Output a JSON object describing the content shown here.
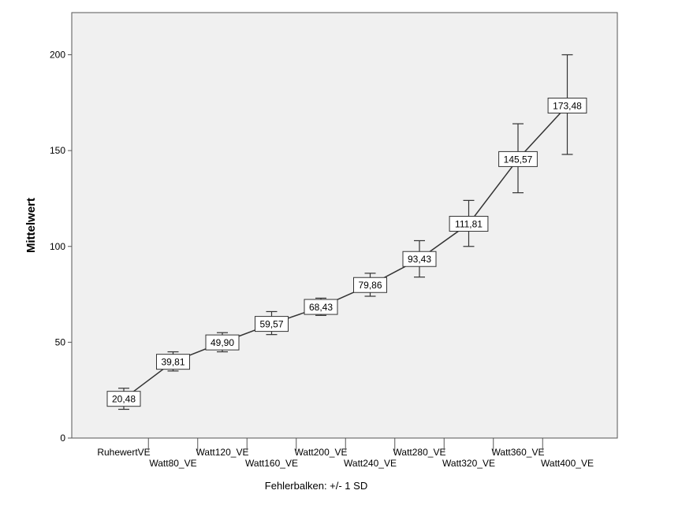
{
  "chart_data": {
    "type": "line",
    "categories": [
      "RuhewertVE",
      "Watt80_VE",
      "Watt120_VE",
      "Watt160_VE",
      "Watt200_VE",
      "Watt240_VE",
      "Watt280_VE",
      "Watt320_VE",
      "Watt360_VE",
      "Watt400_VE"
    ],
    "values": [
      20.48,
      39.81,
      49.9,
      59.57,
      68.43,
      79.86,
      93.43,
      111.81,
      145.57,
      173.48
    ],
    "data_labels": [
      "20,48",
      "39,81",
      "49,90",
      "59,57",
      "68,43",
      "79,86",
      "93,43",
      "111,81",
      "145,57",
      "173,48"
    ],
    "error_low": [
      15,
      35,
      45,
      54,
      64,
      74,
      84,
      100,
      128,
      148
    ],
    "error_high": [
      26,
      45,
      55,
      66,
      73,
      86,
      103,
      124,
      164,
      200
    ],
    "ylabel": "Mittelwert",
    "footnote": "Fehlerbalken: +/- 1 SD",
    "yticks": [
      0,
      50,
      100,
      150,
      200
    ],
    "ylim": [
      0,
      222
    ],
    "grid": false,
    "colors": {
      "plot_background": "#f0f0f0",
      "line": "#333333",
      "marker_fill": "#ffffff"
    }
  }
}
